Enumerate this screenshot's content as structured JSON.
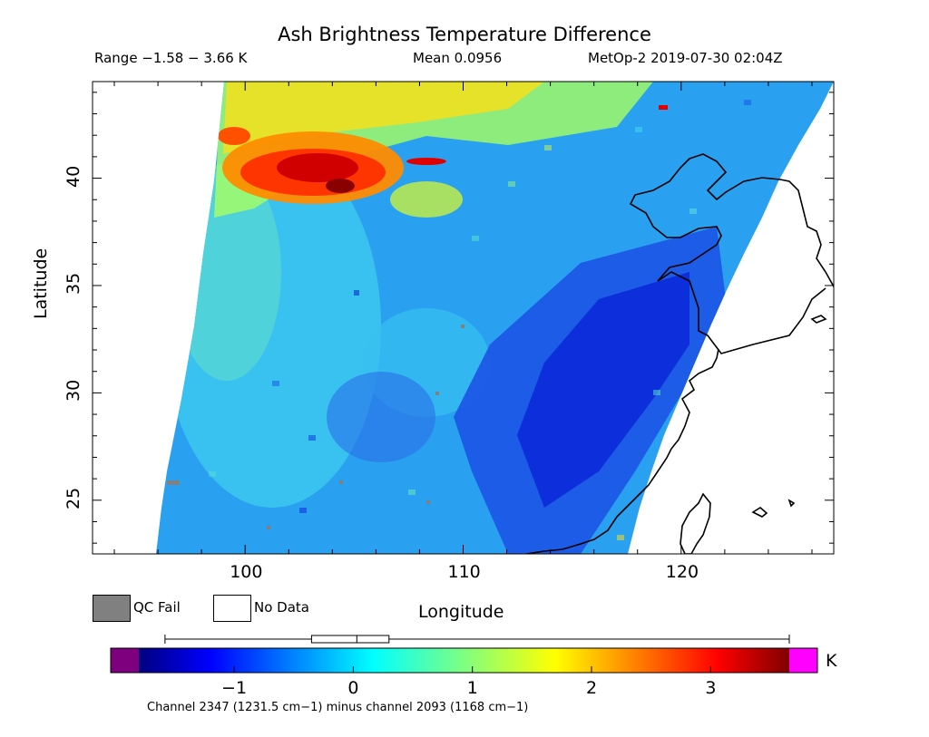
{
  "header": {
    "title": "Ash Brightness Temperature Difference",
    "range_text": "Range −1.58 − 3.66 K",
    "mean_text": "Mean 0.0956",
    "satellite_text": "MetOp-2 2019-07-30 02:04Z"
  },
  "axes": {
    "xlabel": "Longitude",
    "ylabel": "Latitude",
    "x_ticks": [
      "100",
      "110",
      "120"
    ],
    "y_ticks": [
      "25",
      "30",
      "35",
      "40"
    ]
  },
  "legend": {
    "qc_fail_label": "QC Fail",
    "no_data_label": "No Data",
    "qc_fail_color": "#808080"
  },
  "colorbar": {
    "unit": "K",
    "tick_labels": [
      "−1",
      "0",
      "1",
      "2",
      "3"
    ],
    "caption": "Channel 2347 (1231.5 cm−1) minus channel 2093 (1168 cm−1)",
    "under_color": "#7f007f",
    "over_color": "#ff00ff"
  },
  "chart_data": {
    "type": "heatmap",
    "title": "Ash Brightness Temperature Difference",
    "xlabel": "Longitude",
    "ylabel": "Latitude",
    "xlim": [
      93,
      127
    ],
    "ylim": [
      22.5,
      44.5
    ],
    "x_ticks": [
      100,
      110,
      120
    ],
    "y_ticks": [
      25,
      30,
      35,
      40
    ],
    "color_range": [
      -1.8,
      3.66
    ],
    "colorbar_ticks": [
      -1,
      0,
      1,
      2,
      3
    ],
    "range": [
      -1.58,
      3.66
    ],
    "mean": 0.0956,
    "units": "K",
    "boxplot": {
      "min": -1.58,
      "q1": -0.35,
      "median": 0.03,
      "q3": 0.3,
      "max": 3.66
    }
  }
}
